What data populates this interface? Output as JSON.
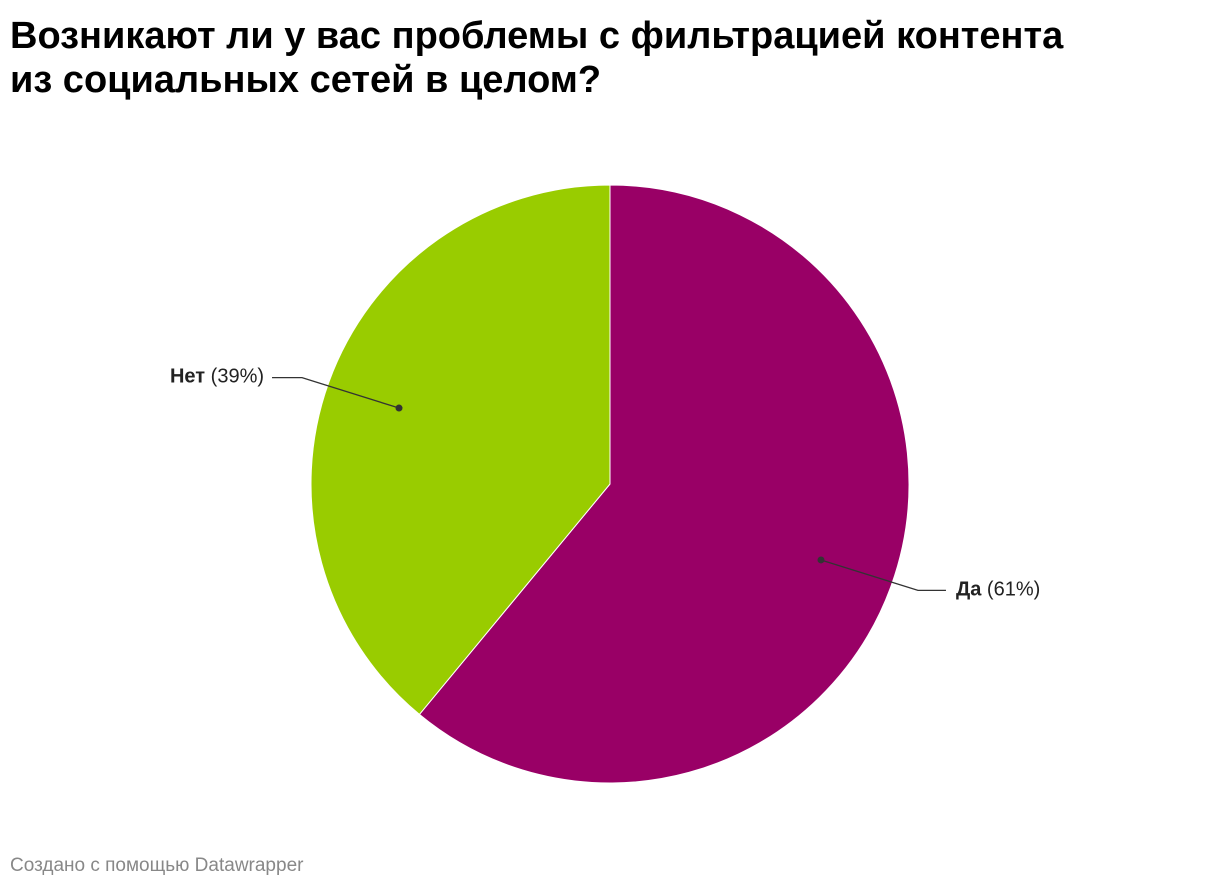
{
  "chart_data": {
    "type": "pie",
    "title": "Возникают ли у вас проблемы с фильтрацией контента из социальных сетей в целом?",
    "categories": [
      "Да",
      "Нет"
    ],
    "values": [
      61,
      39
    ],
    "value_labels": [
      "(61%)",
      "(39%)"
    ],
    "colors": [
      "#990066",
      "#99cc00"
    ],
    "credit": "Создано с помощью Datawrapper"
  }
}
